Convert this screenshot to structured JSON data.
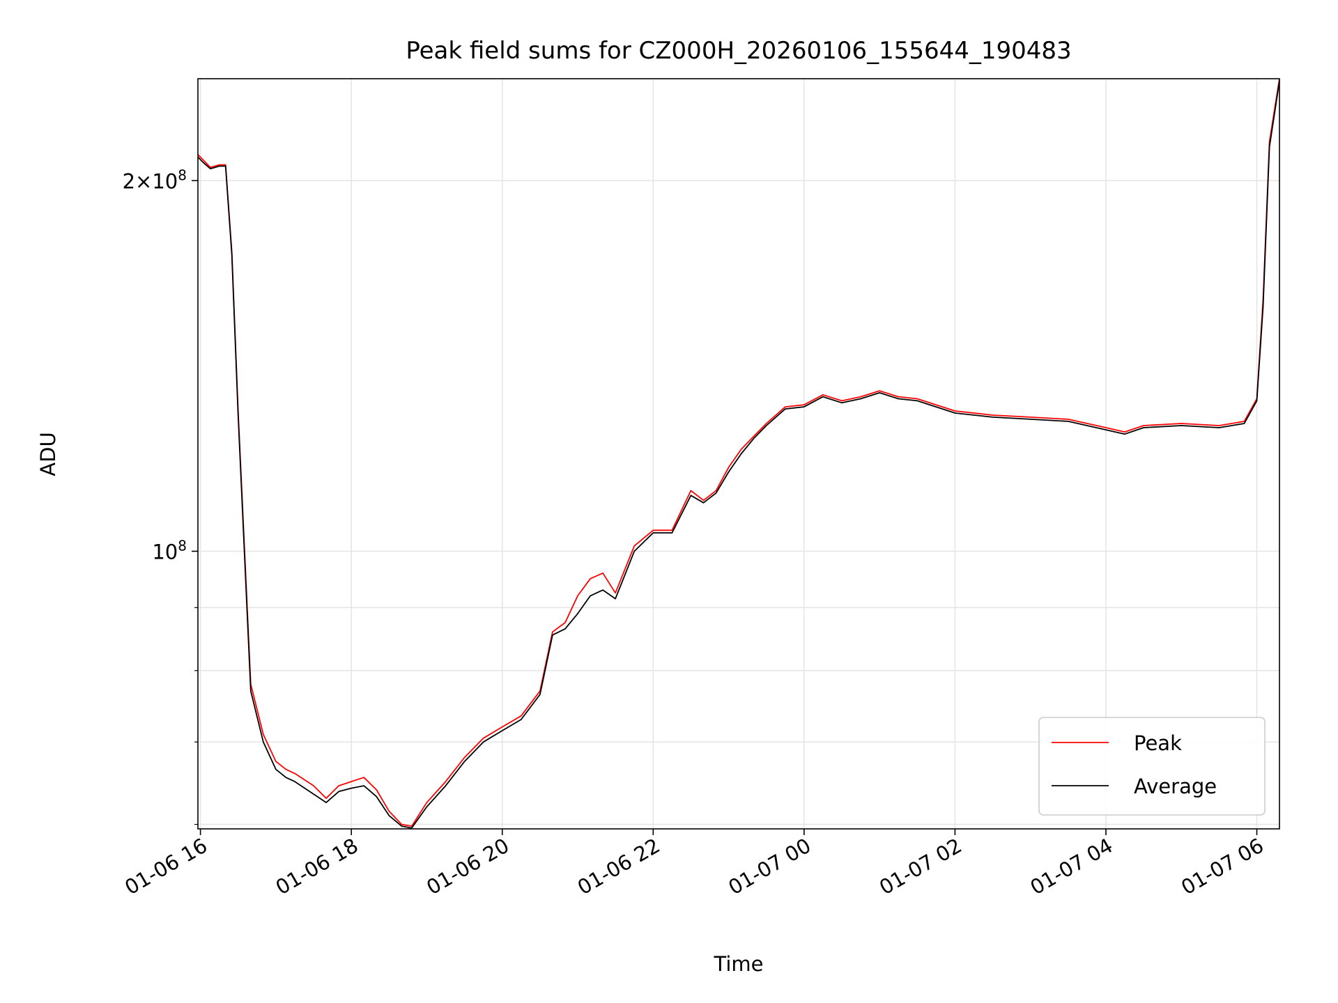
{
  "chart_data": {
    "type": "line",
    "title": "Peak field sums for CZ000H_20260106_155644_190483",
    "xlabel": "Time",
    "ylabel": "ADU",
    "yscale": "log",
    "ylim": [
      59500000,
      242000000
    ],
    "xlim": [
      "2026-01-06 15:58",
      "2026-01-07 06:18"
    ],
    "x_ticks": [
      {
        "value": "2026-01-06 16:00",
        "label": "01-06 16"
      },
      {
        "value": "2026-01-06 18:00",
        "label": "01-06 18"
      },
      {
        "value": "2026-01-06 20:00",
        "label": "01-06 20"
      },
      {
        "value": "2026-01-06 22:00",
        "label": "01-06 22"
      },
      {
        "value": "2026-01-07 00:00",
        "label": "01-07 00"
      },
      {
        "value": "2026-01-07 02:00",
        "label": "01-07 02"
      },
      {
        "value": "2026-01-07 04:00",
        "label": "01-07 04"
      },
      {
        "value": "2026-01-07 06:00",
        "label": "01-07 06"
      }
    ],
    "y_major_ticks": [
      {
        "value": 100000000,
        "base": "10",
        "exp": "8",
        "mult": ""
      },
      {
        "value": 200000000,
        "base": "10",
        "exp": "8",
        "mult": "2×"
      }
    ],
    "y_minor_ticks": [
      60000000,
      70000000,
      80000000,
      90000000
    ],
    "grid": true,
    "legend": {
      "position": "lower-right"
    },
    "series": [
      {
        "name": "Peak",
        "color": "#ff0000",
        "x": [
          "2026-01-06 15:58",
          "2026-01-06 16:02",
          "2026-01-06 16:08",
          "2026-01-06 16:15",
          "2026-01-06 16:20",
          "2026-01-06 16:25",
          "2026-01-06 16:30",
          "2026-01-06 16:40",
          "2026-01-06 16:50",
          "2026-01-06 17:00",
          "2026-01-06 17:08",
          "2026-01-06 17:15",
          "2026-01-06 17:30",
          "2026-01-06 17:40",
          "2026-01-06 17:50",
          "2026-01-06 18:00",
          "2026-01-06 18:10",
          "2026-01-06 18:20",
          "2026-01-06 18:30",
          "2026-01-06 18:40",
          "2026-01-06 18:48",
          "2026-01-06 19:00",
          "2026-01-06 19:15",
          "2026-01-06 19:30",
          "2026-01-06 19:45",
          "2026-01-06 20:00",
          "2026-01-06 20:15",
          "2026-01-06 20:30",
          "2026-01-06 20:40",
          "2026-01-06 20:50",
          "2026-01-06 21:00",
          "2026-01-06 21:10",
          "2026-01-06 21:20",
          "2026-01-06 21:30",
          "2026-01-06 21:45",
          "2026-01-06 22:00",
          "2026-01-06 22:15",
          "2026-01-06 22:30",
          "2026-01-06 22:40",
          "2026-01-06 22:50",
          "2026-01-06 23:00",
          "2026-01-06 23:10",
          "2026-01-06 23:20",
          "2026-01-06 23:30",
          "2026-01-06 23:45",
          "2026-01-07 00:00",
          "2026-01-07 00:15",
          "2026-01-07 00:30",
          "2026-01-07 00:45",
          "2026-01-07 01:00",
          "2026-01-07 01:15",
          "2026-01-07 01:30",
          "2026-01-07 02:00",
          "2026-01-07 02:30",
          "2026-01-07 03:00",
          "2026-01-07 03:30",
          "2026-01-07 04:00",
          "2026-01-07 04:15",
          "2026-01-07 04:30",
          "2026-01-07 05:00",
          "2026-01-07 05:30",
          "2026-01-07 05:40",
          "2026-01-07 05:50",
          "2026-01-07 06:00",
          "2026-01-07 06:05",
          "2026-01-07 06:10",
          "2026-01-07 06:18"
        ],
        "values": [
          210000000,
          208000000,
          205000000,
          206000000,
          206000000,
          175000000,
          130000000,
          78000000,
          71000000,
          67500000,
          66500000,
          66000000,
          64500000,
          63000000,
          64500000,
          65000000,
          65500000,
          64000000,
          61500000,
          60000000,
          59800000,
          62500000,
          65000000,
          68000000,
          70500000,
          72000000,
          73500000,
          77000000,
          86000000,
          87500000,
          92000000,
          95000000,
          96000000,
          92500000,
          101000000,
          104000000,
          104000000,
          112000000,
          110000000,
          112000000,
          117000000,
          121000000,
          124000000,
          127000000,
          131000000,
          131500000,
          134000000,
          132500000,
          133500000,
          135000000,
          133500000,
          133000000,
          130000000,
          129000000,
          128500000,
          128000000,
          126000000,
          125000000,
          126500000,
          127000000,
          126500000,
          127000000,
          127500000,
          133000000,
          160000000,
          215000000,
          242000000
        ]
      },
      {
        "name": "Average",
        "color": "#000000",
        "x": [
          "2026-01-06 15:58",
          "2026-01-06 16:02",
          "2026-01-06 16:08",
          "2026-01-06 16:15",
          "2026-01-06 16:20",
          "2026-01-06 16:25",
          "2026-01-06 16:30",
          "2026-01-06 16:40",
          "2026-01-06 16:50",
          "2026-01-06 17:00",
          "2026-01-06 17:08",
          "2026-01-06 17:15",
          "2026-01-06 17:30",
          "2026-01-06 17:40",
          "2026-01-06 17:50",
          "2026-01-06 18:00",
          "2026-01-06 18:10",
          "2026-01-06 18:20",
          "2026-01-06 18:30",
          "2026-01-06 18:40",
          "2026-01-06 18:48",
          "2026-01-06 19:00",
          "2026-01-06 19:15",
          "2026-01-06 19:30",
          "2026-01-06 19:45",
          "2026-01-06 20:00",
          "2026-01-06 20:15",
          "2026-01-06 20:30",
          "2026-01-06 20:40",
          "2026-01-06 20:50",
          "2026-01-06 21:00",
          "2026-01-06 21:10",
          "2026-01-06 21:20",
          "2026-01-06 21:30",
          "2026-01-06 21:45",
          "2026-01-06 22:00",
          "2026-01-06 22:15",
          "2026-01-06 22:30",
          "2026-01-06 22:40",
          "2026-01-06 22:50",
          "2026-01-06 23:00",
          "2026-01-06 23:10",
          "2026-01-06 23:20",
          "2026-01-06 23:30",
          "2026-01-06 23:45",
          "2026-01-07 00:00",
          "2026-01-07 00:15",
          "2026-01-07 00:30",
          "2026-01-07 00:45",
          "2026-01-07 01:00",
          "2026-01-07 01:15",
          "2026-01-07 01:30",
          "2026-01-07 02:00",
          "2026-01-07 02:30",
          "2026-01-07 03:00",
          "2026-01-07 03:30",
          "2026-01-07 04:00",
          "2026-01-07 04:15",
          "2026-01-07 04:30",
          "2026-01-07 05:00",
          "2026-01-07 05:30",
          "2026-01-07 05:40",
          "2026-01-07 05:50",
          "2026-01-07 06:00",
          "2026-01-07 06:05",
          "2026-01-07 06:10",
          "2026-01-07 06:18"
        ],
        "values": [
          209000000,
          207000000,
          204500000,
          205500000,
          205500000,
          174000000,
          129000000,
          77000000,
          70000000,
          66500000,
          65500000,
          65000000,
          63500000,
          62500000,
          63800000,
          64200000,
          64500000,
          63200000,
          61000000,
          59800000,
          59600000,
          62000000,
          64500000,
          67500000,
          70000000,
          71500000,
          73000000,
          76500000,
          85500000,
          86500000,
          89000000,
          92000000,
          93000000,
          91500000,
          100000000,
          103500000,
          103500000,
          111000000,
          109500000,
          111500000,
          116000000,
          120000000,
          123500000,
          126500000,
          130500000,
          131000000,
          133500000,
          132000000,
          133000000,
          134500000,
          133000000,
          132500000,
          129500000,
          128500000,
          128000000,
          127500000,
          125500000,
          124500000,
          126000000,
          126500000,
          126000000,
          126500000,
          127000000,
          132500000,
          158000000,
          213000000,
          241000000
        ]
      }
    ]
  }
}
